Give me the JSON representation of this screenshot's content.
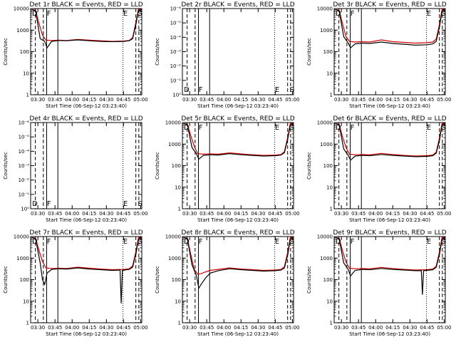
{
  "colors": {
    "events": "#000000",
    "lld": "#d00000",
    "background": "#ffffff"
  },
  "chart_data": [
    {
      "type": "line",
      "title": "Det 1r BLACK = Events, RED = LLD",
      "xlabel": "Start Time (06-Sep-12 03:23:40)",
      "ylabel": "Counts/sec",
      "x_tick_labels": [
        "03:30",
        "03:45",
        "04:00",
        "04:15",
        "04:30",
        "04:45",
        "05:00"
      ],
      "y_tick_labels": [
        "1",
        "10",
        "100",
        "1000",
        "10000"
      ],
      "ylim": [
        1,
        10000
      ],
      "yscale": "log",
      "markers": [
        "D",
        "F",
        "E",
        "S"
      ],
      "series": [
        {
          "name": "Events",
          "color": "#000000",
          "x": [
            "03:25",
            "03:28",
            "03:32",
            "03:36",
            "03:38",
            "03:42",
            "03:48",
            "03:55",
            "04:05",
            "04:15",
            "04:25",
            "04:35",
            "04:45",
            "04:50",
            "04:53",
            "04:56",
            "04:58",
            "05:00"
          ],
          "values": [
            9000,
            8000,
            400,
            300,
            150,
            300,
            330,
            320,
            350,
            320,
            300,
            290,
            300,
            320,
            400,
            2000,
            8000,
            9000
          ]
        },
        {
          "name": "LLD",
          "color": "#d00000",
          "x": [
            "03:25",
            "03:28",
            "03:31",
            "03:34",
            "03:37",
            "03:42",
            "03:48",
            "03:55",
            "04:05",
            "04:15",
            "04:25",
            "04:35",
            "04:45",
            "04:50",
            "04:53",
            "04:56",
            "04:58",
            "05:00"
          ],
          "values": [
            9000,
            8500,
            2000,
            600,
            340,
            330,
            340,
            330,
            370,
            340,
            320,
            300,
            310,
            330,
            450,
            2500,
            9000,
            9500
          ]
        }
      ]
    },
    {
      "type": "line",
      "title": "Det 2r BLACK = Events, RED = LLD",
      "xlabel": "Start Time (06-Sep-12 03:23:40)",
      "ylabel": "Counts/sec",
      "x_tick_labels": [
        "03:30",
        "03:45",
        "04:00",
        "04:15",
        "04:30",
        "04:45",
        "05:00"
      ],
      "y_tick_labels": [
        "10⁰",
        "10⁻¹",
        "10⁻²",
        "10⁻³",
        "10⁻⁴",
        "10⁻⁵",
        "10⁻⁶"
      ],
      "markers": [
        "D",
        "F",
        "E",
        "S"
      ],
      "series": []
    },
    {
      "type": "line",
      "title": "Det 3r BLACK = Events, RED = LLD",
      "xlabel": "Start Time (06-Sep-12 03:23:40)",
      "ylabel": "Counts/sec",
      "x_tick_labels": [
        "03:30",
        "03:45",
        "04:00",
        "04:15",
        "04:30",
        "04:45",
        "05:00"
      ],
      "y_tick_labels": [
        "1",
        "10",
        "100",
        "1000",
        "10000"
      ],
      "ylim": [
        1,
        10000
      ],
      "yscale": "log",
      "markers": [
        "D",
        "F",
        "E",
        "S"
      ],
      "series": [
        {
          "name": "Events",
          "color": "#000000",
          "x": [
            "03:25",
            "03:28",
            "03:32",
            "03:36",
            "03:38",
            "03:42",
            "03:48",
            "03:55",
            "04:05",
            "04:15",
            "04:25",
            "04:35",
            "04:45",
            "04:50",
            "04:53",
            "04:56",
            "04:58",
            "05:00"
          ],
          "values": [
            9000,
            8000,
            500,
            250,
            150,
            230,
            250,
            240,
            280,
            240,
            220,
            200,
            210,
            230,
            300,
            1500,
            7000,
            9000
          ]
        },
        {
          "name": "LLD",
          "color": "#d00000",
          "x": [
            "03:25",
            "03:28",
            "03:31",
            "03:34",
            "03:37",
            "03:42",
            "03:48",
            "03:55",
            "04:05",
            "04:15",
            "04:25",
            "04:35",
            "04:45",
            "04:50",
            "04:53",
            "04:56",
            "04:58",
            "05:00"
          ],
          "values": [
            9000,
            8500,
            2000,
            500,
            300,
            280,
            290,
            280,
            350,
            290,
            270,
            250,
            260,
            280,
            380,
            2000,
            8500,
            9500
          ]
        }
      ]
    },
    {
      "type": "line",
      "title": "Det 4r BLACK = Events, RED = LLD",
      "xlabel": "Start Time (06-Sep-12 03:23:40)",
      "ylabel": "Counts/sec",
      "x_tick_labels": [
        "03:30",
        "03:45",
        "04:00",
        "04:15",
        "04:30",
        "04:45",
        "05:00"
      ],
      "y_tick_labels": [
        "10⁰",
        "10⁻¹",
        "10⁻²",
        "10⁻³",
        "10⁻⁴",
        "10⁻⁵",
        "10⁻⁶"
      ],
      "markers": [
        "D",
        "F",
        "E",
        "S"
      ],
      "series": []
    },
    {
      "type": "line",
      "title": "Det 5r BLACK = Events, RED = LLD",
      "xlabel": "Start Time (06-Sep-12 03:23:40)",
      "ylabel": "Counts/sec",
      "x_tick_labels": [
        "03:30",
        "03:45",
        "04:00",
        "04:15",
        "04:30",
        "04:45",
        "05:00"
      ],
      "y_tick_labels": [
        "1",
        "10",
        "100",
        "1000",
        "10000"
      ],
      "ylim": [
        1,
        10000
      ],
      "yscale": "log",
      "markers": [
        "D",
        "F",
        "E",
        "S"
      ],
      "series": [
        {
          "name": "Events",
          "color": "#000000",
          "x": [
            "03:25",
            "03:28",
            "03:32",
            "03:36",
            "03:38",
            "03:42",
            "03:48",
            "03:55",
            "04:05",
            "04:15",
            "04:25",
            "04:35",
            "04:45",
            "04:50",
            "04:53",
            "04:56",
            "04:58",
            "05:00"
          ],
          "values": [
            9000,
            8000,
            700,
            350,
            200,
            300,
            320,
            310,
            360,
            320,
            300,
            280,
            290,
            310,
            400,
            1800,
            7000,
            9000
          ]
        },
        {
          "name": "LLD",
          "color": "#d00000",
          "x": [
            "03:25",
            "03:28",
            "03:31",
            "03:34",
            "03:37",
            "03:42",
            "03:48",
            "03:55",
            "04:05",
            "04:15",
            "04:25",
            "04:35",
            "04:45",
            "04:50",
            "04:53",
            "04:56",
            "04:58",
            "05:00"
          ],
          "values": [
            9000,
            8500,
            2500,
            800,
            360,
            340,
            350,
            340,
            390,
            350,
            320,
            300,
            310,
            330,
            450,
            2200,
            8500,
            9500
          ]
        }
      ]
    },
    {
      "type": "line",
      "title": "Det 6r BLACK = Events, RED = LLD",
      "xlabel": "Start Time (06-Sep-12 03:23:40)",
      "ylabel": "Counts/sec",
      "x_tick_labels": [
        "03:30",
        "03:45",
        "04:00",
        "04:15",
        "04:30",
        "04:45",
        "05:00"
      ],
      "y_tick_labels": [
        "1",
        "10",
        "100",
        "1000",
        "10000"
      ],
      "ylim": [
        1,
        10000
      ],
      "yscale": "log",
      "markers": [
        "D",
        "F",
        "E",
        "S"
      ],
      "series": [
        {
          "name": "Events",
          "color": "#000000",
          "x": [
            "03:25",
            "03:28",
            "03:32",
            "03:36",
            "03:38",
            "03:42",
            "03:48",
            "03:55",
            "04:05",
            "04:15",
            "04:25",
            "04:35",
            "04:45",
            "04:50",
            "04:53",
            "04:56",
            "04:58",
            "05:00"
          ],
          "values": [
            9000,
            8000,
            600,
            300,
            180,
            280,
            300,
            290,
            330,
            300,
            280,
            260,
            270,
            290,
            380,
            1600,
            7000,
            9000
          ]
        },
        {
          "name": "LLD",
          "color": "#d00000",
          "x": [
            "03:25",
            "03:28",
            "03:31",
            "03:34",
            "03:37",
            "03:42",
            "03:48",
            "03:55",
            "04:05",
            "04:15",
            "04:25",
            "04:35",
            "04:45",
            "04:50",
            "04:53",
            "04:56",
            "04:58",
            "05:00"
          ],
          "values": [
            9000,
            8500,
            2200,
            700,
            340,
            320,
            330,
            320,
            370,
            330,
            300,
            280,
            290,
            310,
            420,
            2100,
            8500,
            9500
          ]
        }
      ]
    },
    {
      "type": "line",
      "title": "Det 7r BLACK = Events, RED = LLD",
      "xlabel": "Start Time (06-Sep-12 03:23:40)",
      "ylabel": "Counts/sec",
      "x_tick_labels": [
        "03:30",
        "03:45",
        "04:00",
        "04:15",
        "04:30",
        "04:45",
        "05:00"
      ],
      "y_tick_labels": [
        "1",
        "10",
        "100",
        "1000",
        "10000"
      ],
      "ylim": [
        1,
        10000
      ],
      "yscale": "log",
      "markers": [
        "D",
        "F",
        "E",
        "S"
      ],
      "series": [
        {
          "name": "Events",
          "color": "#000000",
          "x": [
            "03:25",
            "03:28",
            "03:32",
            "03:34",
            "03:36",
            "03:38",
            "03:42",
            "03:48",
            "03:55",
            "04:05",
            "04:15",
            "04:25",
            "04:35",
            "04:42",
            "04:43",
            "04:44",
            "04:50",
            "04:53",
            "04:56",
            "04:58",
            "05:00"
          ],
          "values": [
            9000,
            8000,
            600,
            100,
            60,
            200,
            300,
            320,
            310,
            350,
            310,
            290,
            270,
            280,
            8,
            270,
            300,
            380,
            1700,
            7000,
            9000
          ]
        },
        {
          "name": "LLD",
          "color": "#d00000",
          "x": [
            "03:25",
            "03:28",
            "03:31",
            "03:34",
            "03:37",
            "03:42",
            "03:48",
            "03:55",
            "04:05",
            "04:15",
            "04:25",
            "04:35",
            "04:45",
            "04:50",
            "04:53",
            "04:56",
            "04:58",
            "05:00"
          ],
          "values": [
            9000,
            8500,
            2300,
            700,
            350,
            330,
            340,
            330,
            380,
            340,
            310,
            290,
            300,
            320,
            440,
            2200,
            8500,
            9500
          ]
        }
      ]
    },
    {
      "type": "line",
      "title": "Det 8r BLACK = Events, RED = LLD",
      "xlabel": "Start Time (06-Sep-12 03:23:40)",
      "ylabel": "Counts/sec",
      "x_tick_labels": [
        "03:30",
        "03:45",
        "04:00",
        "04:15",
        "04:30",
        "04:45",
        "05:00"
      ],
      "y_tick_labels": [
        "1",
        "10",
        "100",
        "1000",
        "10000"
      ],
      "ylim": [
        1,
        10000
      ],
      "yscale": "log",
      "markers": [
        "D",
        "F",
        "E",
        "S"
      ],
      "series": [
        {
          "name": "Events",
          "color": "#000000",
          "x": [
            "03:25",
            "03:28",
            "03:32",
            "03:36",
            "03:38",
            "03:40",
            "03:44",
            "03:48",
            "03:55",
            "04:05",
            "04:15",
            "04:25",
            "04:35",
            "04:45",
            "04:50",
            "04:53",
            "04:56",
            "04:58",
            "05:00"
          ],
          "values": [
            9000,
            8000,
            500,
            150,
            40,
            60,
            120,
            200,
            260,
            320,
            290,
            270,
            250,
            260,
            280,
            350,
            1500,
            7000,
            9000
          ]
        },
        {
          "name": "LLD",
          "color": "#d00000",
          "x": [
            "03:25",
            "03:28",
            "03:31",
            "03:34",
            "03:37",
            "03:40",
            "03:44",
            "03:48",
            "03:55",
            "04:05",
            "04:15",
            "04:25",
            "04:35",
            "04:45",
            "04:50",
            "04:53",
            "04:56",
            "04:58",
            "05:00"
          ],
          "values": [
            9000,
            8500,
            1500,
            300,
            180,
            190,
            230,
            270,
            300,
            350,
            310,
            290,
            270,
            280,
            300,
            400,
            2000,
            8500,
            9500
          ]
        }
      ]
    },
    {
      "type": "line",
      "title": "Det 9r BLACK = Events, RED = LLD",
      "xlabel": "Start Time (06-Sep-12 03:23:40)",
      "ylabel": "Counts/sec",
      "x_tick_labels": [
        "03:30",
        "03:45",
        "04:00",
        "04:15",
        "04:30",
        "04:45",
        "05:00"
      ],
      "y_tick_labels": [
        "1",
        "10",
        "100",
        "1000",
        "10000"
      ],
      "ylim": [
        1,
        10000
      ],
      "yscale": "log",
      "markers": [
        "D",
        "F",
        "E",
        "S"
      ],
      "series": [
        {
          "name": "Events",
          "color": "#000000",
          "x": [
            "03:25",
            "03:28",
            "03:32",
            "03:36",
            "03:38",
            "03:42",
            "03:48",
            "03:55",
            "04:05",
            "04:15",
            "04:25",
            "04:35",
            "04:40",
            "04:41",
            "04:42",
            "04:45",
            "04:50",
            "04:53",
            "04:56",
            "04:58",
            "05:00"
          ],
          "values": [
            9000,
            8000,
            600,
            300,
            150,
            270,
            300,
            290,
            330,
            300,
            280,
            260,
            260,
            20,
            260,
            270,
            290,
            370,
            1600,
            7000,
            9000
          ]
        },
        {
          "name": "LLD",
          "color": "#d00000",
          "x": [
            "03:25",
            "03:28",
            "03:31",
            "03:34",
            "03:37",
            "03:42",
            "03:48",
            "03:55",
            "04:05",
            "04:15",
            "04:25",
            "04:35",
            "04:45",
            "04:50",
            "04:53",
            "04:56",
            "04:58",
            "05:00"
          ],
          "values": [
            9000,
            8500,
            2200,
            650,
            340,
            320,
            330,
            320,
            370,
            330,
            300,
            280,
            290,
            310,
            420,
            2100,
            8500,
            9500
          ]
        }
      ]
    }
  ]
}
